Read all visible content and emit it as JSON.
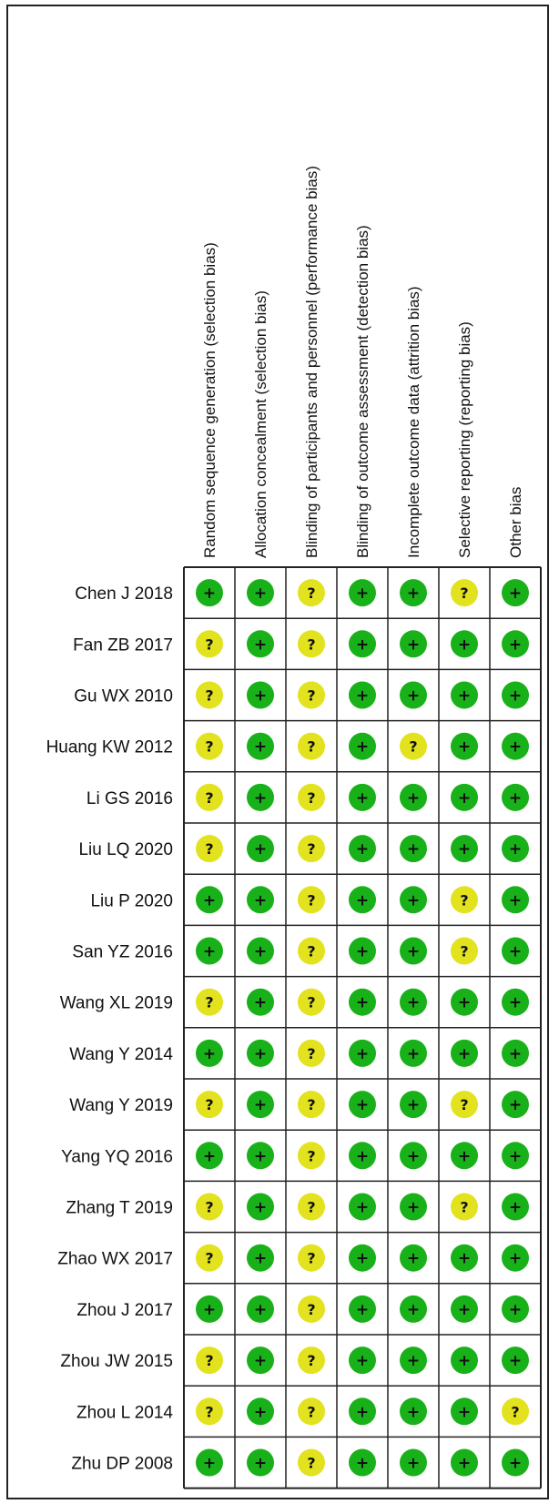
{
  "chart_data": {
    "type": "table",
    "columns": [
      "Random sequence generation (selection bias)",
      "Allocation concealment (selection bias)",
      "Blinding of participants and personnel (performance bias)",
      "Blinding of outcome assessment (detection bias)",
      "Incomplete outcome data (attrition bias)",
      "Selective reporting (reporting bias)",
      "Other bias"
    ],
    "studies": [
      "Chen J 2018",
      "Fan ZB 2017",
      "Gu WX 2010",
      "Huang KW 2012",
      "Li GS 2016",
      "Liu LQ 2020",
      "Liu P 2020",
      "San YZ 2016",
      "Wang XL 2019",
      "Wang Y 2014",
      "Wang Y 2019",
      "Yang YQ 2016",
      "Zhang T 2019",
      "Zhao WX 2017",
      "Zhou J 2017",
      "Zhou JW 2015",
      "Zhou L 2014",
      "Zhu DP 2008"
    ],
    "judgements": [
      [
        "+",
        "+",
        "?",
        "+",
        "+",
        "?",
        "+"
      ],
      [
        "?",
        "+",
        "?",
        "+",
        "+",
        "+",
        "+"
      ],
      [
        "?",
        "+",
        "?",
        "+",
        "+",
        "+",
        "+"
      ],
      [
        "?",
        "+",
        "?",
        "+",
        "?",
        "+",
        "+"
      ],
      [
        "?",
        "+",
        "?",
        "+",
        "+",
        "+",
        "+"
      ],
      [
        "?",
        "+",
        "?",
        "+",
        "+",
        "+",
        "+"
      ],
      [
        "+",
        "+",
        "?",
        "+",
        "+",
        "?",
        "+"
      ],
      [
        "+",
        "+",
        "?",
        "+",
        "+",
        "?",
        "+"
      ],
      [
        "?",
        "+",
        "?",
        "+",
        "+",
        "+",
        "+"
      ],
      [
        "+",
        "+",
        "?",
        "+",
        "+",
        "+",
        "+"
      ],
      [
        "?",
        "+",
        "?",
        "+",
        "+",
        "?",
        "+"
      ],
      [
        "+",
        "+",
        "?",
        "+",
        "+",
        "+",
        "+"
      ],
      [
        "?",
        "+",
        "?",
        "+",
        "+",
        "?",
        "+"
      ],
      [
        "?",
        "+",
        "?",
        "+",
        "+",
        "+",
        "+"
      ],
      [
        "+",
        "+",
        "?",
        "+",
        "+",
        "+",
        "+"
      ],
      [
        "?",
        "+",
        "?",
        "+",
        "+",
        "+",
        "+"
      ],
      [
        "?",
        "+",
        "?",
        "+",
        "+",
        "+",
        "?"
      ],
      [
        "+",
        "+",
        "?",
        "+",
        "+",
        "+",
        "+"
      ]
    ],
    "colors": {
      "low_risk": "#19b119",
      "unclear_risk": "#e2e21f",
      "grid": "#222222",
      "frame": "#222222"
    }
  }
}
